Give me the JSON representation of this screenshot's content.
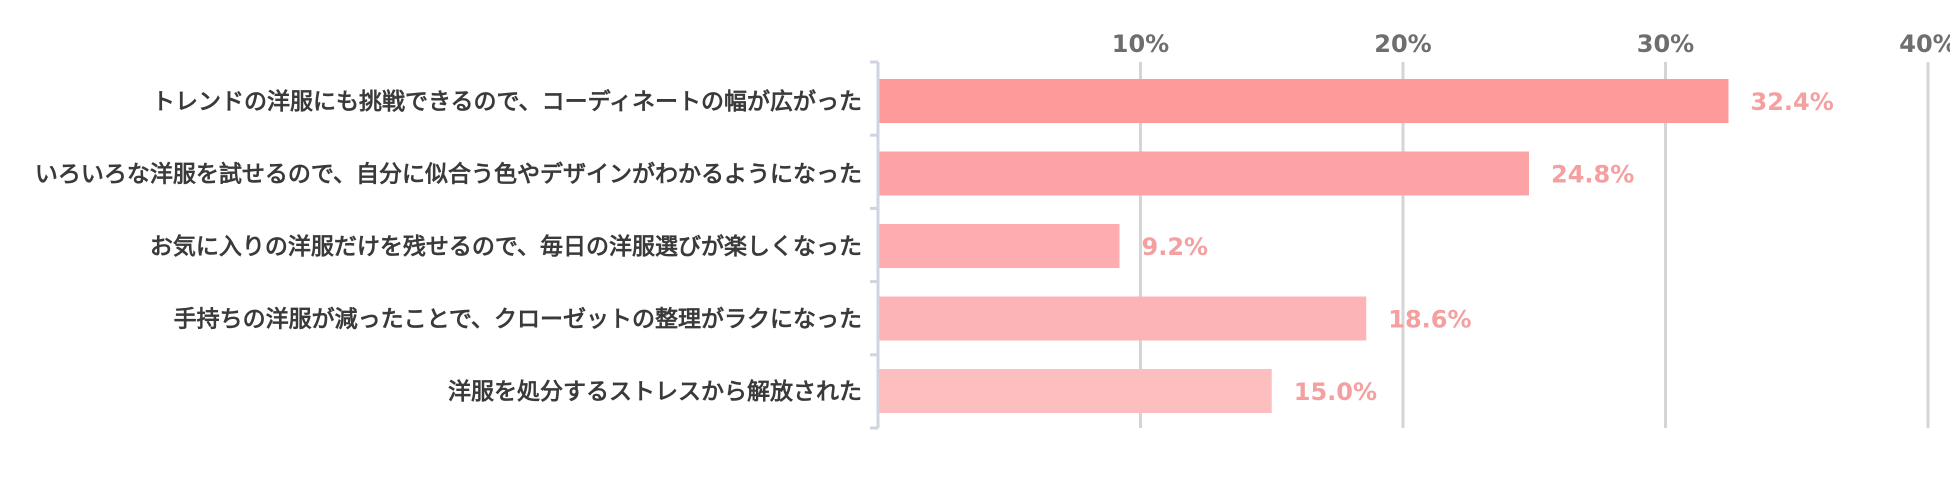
{
  "chart_data": {
    "type": "bar",
    "orientation": "horizontal",
    "categories": [
      "トレンドの洋服にも挑戦できるので、コーディネートの幅が広がった",
      "いろいろな洋服を試せるので、自分に似合う色やデザインがわかるようになった",
      "お気に入りの洋服だけを残せるので、毎日の洋服選びが楽しくなった",
      "手持ちの洋服が減ったことで、クローゼットの整理がラクになった",
      "洋服を処分するストレスから解放された"
    ],
    "values": [
      32.4,
      24.8,
      9.2,
      18.6,
      15.0
    ],
    "value_labels": [
      "32.4%",
      "24.8%",
      "9.2%",
      "18.6%",
      "15.0%"
    ],
    "xlim": [
      0,
      40
    ],
    "ticks": [
      10,
      20,
      30,
      40
    ],
    "tick_labels": [
      "10%",
      "20%",
      "30%",
      "40%"
    ],
    "grid": true,
    "tick_position": "top",
    "bar_colors": [
      "#ff9a9b",
      "#fea3a5",
      "#fdacaf",
      "#fdb4b7",
      "#fdbec0"
    ],
    "value_label_color": "#f4a0a0",
    "grid_color": "#d5d5d8"
  }
}
